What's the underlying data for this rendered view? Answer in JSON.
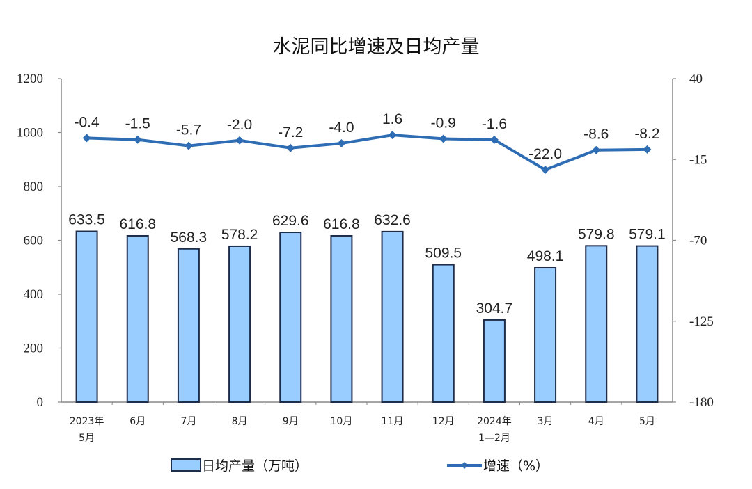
{
  "chart_data": {
    "type": "bar+line",
    "title": "水泥同比增速及日均产量",
    "categories": [
      "2023年\n5月",
      "6月",
      "7月",
      "8月",
      "9月",
      "10月",
      "11月",
      "12月",
      "2024年\n1—2月",
      "3月",
      "4月",
      "5月"
    ],
    "category_lines": [
      [
        "2023年",
        "5月"
      ],
      [
        "6月"
      ],
      [
        "7月"
      ],
      [
        "8月"
      ],
      [
        "9月"
      ],
      [
        "10月"
      ],
      [
        "11月"
      ],
      [
        "12月"
      ],
      [
        "2024年",
        "1—2月"
      ],
      [
        "3月"
      ],
      [
        "4月"
      ],
      [
        "5月"
      ]
    ],
    "series": [
      {
        "name": "日均产量（万吨）",
        "type": "bar",
        "axis": "left",
        "color": "#99CCFF",
        "edge": "#1F2D4A",
        "values": [
          633.5,
          616.8,
          568.3,
          578.2,
          629.6,
          616.8,
          632.6,
          509.5,
          304.7,
          498.1,
          579.8,
          579.1
        ]
      },
      {
        "name": "增速（%）",
        "type": "line",
        "axis": "right",
        "color": "#2E6DB4",
        "values": [
          -0.4,
          -1.5,
          -5.7,
          -2.0,
          -7.2,
          -4.0,
          1.6,
          -0.9,
          -1.6,
          -22.0,
          -8.6,
          -8.2
        ]
      }
    ],
    "y_left": {
      "min": 0,
      "max": 1200,
      "ticks": [
        0,
        200,
        400,
        600,
        800,
        1000,
        1200
      ]
    },
    "y_right": {
      "min": -180,
      "max": 40,
      "ticks": [
        -180,
        -125,
        -70,
        -15,
        40
      ]
    },
    "xlabel": "",
    "ylabel": "",
    "grid": false,
    "legend_position": "bottom"
  },
  "legend": {
    "bar_label": "日均产量（万吨）",
    "line_label": "增速（%）"
  }
}
